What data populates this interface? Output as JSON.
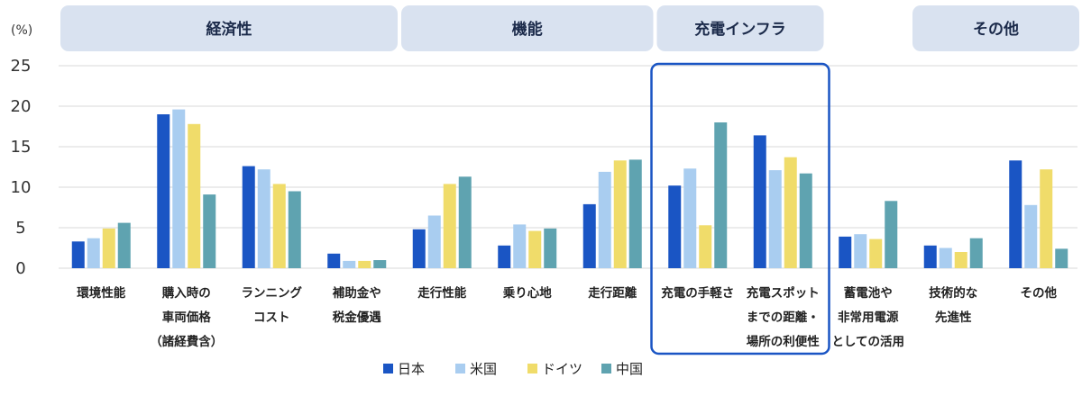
{
  "chart_data": {
    "type": "bar",
    "unit_label": "(%)",
    "ylim": [
      0,
      25
    ],
    "yticks": [
      0,
      5,
      10,
      15,
      20,
      25
    ],
    "grid": true,
    "legend_position": "bottom",
    "groups": [
      {
        "label": "経済性",
        "start": 0,
        "end": 3
      },
      {
        "label": "機能",
        "start": 4,
        "end": 6
      },
      {
        "label": "充電インフラ",
        "start": 7,
        "end": 8
      },
      {
        "label": "その他",
        "start": 10,
        "end": 11
      }
    ],
    "highlight_categories": [
      7,
      8
    ],
    "categories": [
      [
        "環境性能"
      ],
      [
        "購入時の",
        "車両価格",
        "（諸経費含）"
      ],
      [
        "ランニング",
        "コスト"
      ],
      [
        "補助金や",
        "税金優遇"
      ],
      [
        "走行性能"
      ],
      [
        "乗り心地"
      ],
      [
        "走行距離"
      ],
      [
        "充電の手軽さ"
      ],
      [
        "充電スポット",
        "までの距離・",
        "場所の利便性"
      ],
      [
        "蓄電池や",
        "非常用電源",
        "としての活用"
      ],
      [
        "技術的な",
        "先進性"
      ],
      [
        "その他"
      ]
    ],
    "series": [
      {
        "name": "日本",
        "color": "#1a55c4",
        "values": [
          3.3,
          19.0,
          12.6,
          1.8,
          4.8,
          2.8,
          7.9,
          10.2,
          16.4,
          3.9,
          2.8,
          13.3
        ]
      },
      {
        "name": "米国",
        "color": "#a9cdf0",
        "values": [
          3.7,
          19.6,
          12.2,
          0.9,
          6.5,
          5.4,
          11.9,
          12.3,
          12.1,
          4.2,
          2.5,
          7.8
        ]
      },
      {
        "name": "ドイツ",
        "color": "#f0dc6a",
        "values": [
          4.9,
          17.8,
          10.4,
          0.9,
          10.4,
          4.6,
          13.3,
          5.3,
          13.7,
          3.6,
          2.0,
          12.2
        ]
      },
      {
        "name": "中国",
        "color": "#5fa3b0",
        "values": [
          5.6,
          9.1,
          9.5,
          1.0,
          11.3,
          4.9,
          13.4,
          18.0,
          11.7,
          8.3,
          3.7,
          2.4
        ]
      }
    ]
  },
  "colors": {
    "header_bg": "#d9e2f0",
    "grid": "#d8d8d8",
    "highlight_border": "#1a55c4"
  }
}
